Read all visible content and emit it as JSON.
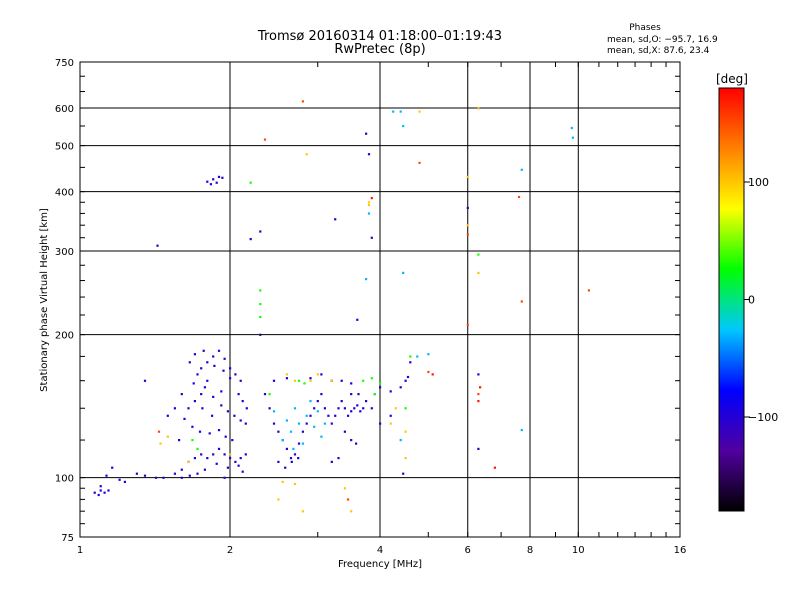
{
  "header": {
    "title_line1": "Tromsø 20160314 01:18:00–01:19:43",
    "title_line2": "RwPretec (8p)"
  },
  "phases": {
    "heading": "Phases",
    "line_o": "mean, sd,O: −95.7, 16.9",
    "line_x": "mean, sd,X:  87.6, 23.4"
  },
  "colorbar": {
    "unit": "[deg]",
    "ticks": [
      {
        "value": 100,
        "label": "100"
      },
      {
        "value": 0,
        "label": "0"
      },
      {
        "value": -100,
        "label": "−100"
      }
    ],
    "range": [
      -180,
      180
    ],
    "stops": [
      "#000000",
      "#5000a0",
      "#0000ff",
      "#00c8ff",
      "#00ff00",
      "#ffff00",
      "#ff8000",
      "#ff0000"
    ]
  },
  "chart_data": {
    "type": "scatter",
    "xlabel": "Frequency [MHz]",
    "ylabel": "Stationary phase Virtual Height [km]",
    "xscale": "log",
    "yscale": "log",
    "xlim": [
      1,
      16
    ],
    "ylim": [
      75,
      750
    ],
    "xticks": [
      {
        "value": 1,
        "label": "1"
      },
      {
        "value": 2,
        "label": "2"
      },
      {
        "value": 4,
        "label": "4"
      },
      {
        "value": 6,
        "label": "6"
      },
      {
        "value": 8,
        "label": "8"
      },
      {
        "value": 10,
        "label": "10"
      },
      {
        "value": 16,
        "label": "16"
      }
    ],
    "xgrid": [
      2,
      4,
      6,
      8,
      10
    ],
    "yticks": [
      {
        "value": 75,
        "label": "75"
      },
      {
        "value": 100,
        "label": "100"
      },
      {
        "value": 200,
        "label": "200"
      },
      {
        "value": 300,
        "label": "300"
      },
      {
        "value": 400,
        "label": "400"
      },
      {
        "value": 500,
        "label": "500"
      },
      {
        "value": 600,
        "label": "600"
      },
      {
        "value": 750,
        "label": "750"
      }
    ],
    "ygrid": [
      100,
      200,
      300,
      400,
      500,
      600
    ],
    "points": [
      [
        1.07,
        93,
        -100
      ],
      [
        1.09,
        92,
        -100
      ],
      [
        1.1,
        94,
        -100
      ],
      [
        1.12,
        93,
        -100
      ],
      [
        1.14,
        94,
        -100
      ],
      [
        1.1,
        96,
        -100
      ],
      [
        1.13,
        101,
        -100
      ],
      [
        1.16,
        105,
        -100
      ],
      [
        1.2,
        99,
        -100
      ],
      [
        1.23,
        98,
        -100
      ],
      [
        1.3,
        102,
        -100
      ],
      [
        1.35,
        101,
        -100
      ],
      [
        1.42,
        100,
        -100
      ],
      [
        1.47,
        100,
        -100
      ],
      [
        1.55,
        102,
        -100
      ],
      [
        1.6,
        104,
        -100
      ],
      [
        1.65,
        108,
        -100
      ],
      [
        1.7,
        110,
        -100
      ],
      [
        1.75,
        112,
        -100
      ],
      [
        1.8,
        110,
        -100
      ],
      [
        1.85,
        112,
        -100
      ],
      [
        1.9,
        115,
        -100
      ],
      [
        1.95,
        112,
        -100
      ],
      [
        2.0,
        110,
        -100
      ],
      [
        2.05,
        108,
        -100
      ],
      [
        2.1,
        110,
        -100
      ],
      [
        2.15,
        112,
        -100
      ],
      [
        1.72,
        102,
        -100
      ],
      [
        1.6,
        100,
        -100
      ],
      [
        1.66,
        101,
        -100
      ],
      [
        1.78,
        104,
        -100
      ],
      [
        1.88,
        107,
        -100
      ],
      [
        1.98,
        105,
        -100
      ],
      [
        2.08,
        106,
        -100
      ],
      [
        2.12,
        103,
        -100
      ],
      [
        1.95,
        100,
        -100
      ],
      [
        1.58,
        120,
        -100
      ],
      [
        1.62,
        133,
        -100
      ],
      [
        1.65,
        140,
        -100
      ],
      [
        1.7,
        145,
        -100
      ],
      [
        1.75,
        150,
        -100
      ],
      [
        1.8,
        160,
        -100
      ],
      [
        1.75,
        170,
        -100
      ],
      [
        1.8,
        175,
        -100
      ],
      [
        1.85,
        180,
        -100
      ],
      [
        1.9,
        185,
        -100
      ],
      [
        1.95,
        178,
        -100
      ],
      [
        2.0,
        170,
        -100
      ],
      [
        2.05,
        165,
        -100
      ],
      [
        2.1,
        160,
        -100
      ],
      [
        1.72,
        165,
        -100
      ],
      [
        1.78,
        155,
        -100
      ],
      [
        1.85,
        148,
        -100
      ],
      [
        1.92,
        142,
        -100
      ],
      [
        1.98,
        138,
        -100
      ],
      [
        2.04,
        135,
        -100
      ],
      [
        2.1,
        132,
        -100
      ],
      [
        2.15,
        130,
        -100
      ],
      [
        1.68,
        128,
        -100
      ],
      [
        1.74,
        125,
        -100
      ],
      [
        1.82,
        124,
        -100
      ],
      [
        1.9,
        126,
        -100
      ],
      [
        1.96,
        122,
        -100
      ],
      [
        2.02,
        120,
        -100
      ],
      [
        1.66,
        175,
        -100
      ],
      [
        1.7,
        182,
        -100
      ],
      [
        1.86,
        172,
        -100
      ],
      [
        1.94,
        168,
        -100
      ],
      [
        2.0,
        162,
        -100
      ],
      [
        1.76,
        140,
        -100
      ],
      [
        1.84,
        135,
        -100
      ],
      [
        1.92,
        152,
        -100
      ],
      [
        2.08,
        150,
        -100
      ],
      [
        2.12,
        145,
        -100
      ],
      [
        2.16,
        140,
        -100
      ],
      [
        1.69,
        158,
        -100
      ],
      [
        1.77,
        185,
        -100
      ],
      [
        1.35,
        160,
        -100
      ],
      [
        1.5,
        135,
        -100
      ],
      [
        1.55,
        140,
        -100
      ],
      [
        1.6,
        150,
        -100
      ],
      [
        1.8,
        420,
        -100
      ],
      [
        1.85,
        425,
        -100
      ],
      [
        1.9,
        430,
        -100
      ],
      [
        1.83,
        415,
        -100
      ],
      [
        1.88,
        418,
        -100
      ],
      [
        1.93,
        428,
        -100
      ],
      [
        1.43,
        308,
        -100
      ],
      [
        2.2,
        318,
        -100
      ],
      [
        2.35,
        150,
        -100
      ],
      [
        2.4,
        140,
        -100
      ],
      [
        2.45,
        130,
        -100
      ],
      [
        2.5,
        125,
        -100
      ],
      [
        2.55,
        120,
        -100
      ],
      [
        2.6,
        115,
        -100
      ],
      [
        2.65,
        110,
        -100
      ],
      [
        2.7,
        112,
        -100
      ],
      [
        2.75,
        118,
        -100
      ],
      [
        2.8,
        125,
        -100
      ],
      [
        2.85,
        130,
        -100
      ],
      [
        2.9,
        135,
        -100
      ],
      [
        2.95,
        140,
        -100
      ],
      [
        3.0,
        145,
        -100
      ],
      [
        3.05,
        150,
        -100
      ],
      [
        3.1,
        140,
        -100
      ],
      [
        3.15,
        135,
        -100
      ],
      [
        3.2,
        130,
        -100
      ],
      [
        3.25,
        135,
        -100
      ],
      [
        3.3,
        140,
        -100
      ],
      [
        3.35,
        145,
        -100
      ],
      [
        3.4,
        140,
        -100
      ],
      [
        3.45,
        135,
        -100
      ],
      [
        3.5,
        138,
        -100
      ],
      [
        3.55,
        140,
        -100
      ],
      [
        3.6,
        142,
        -100
      ],
      [
        3.65,
        138,
        -100
      ],
      [
        3.7,
        140,
        -100
      ],
      [
        2.5,
        108,
        -100
      ],
      [
        2.58,
        105,
        -100
      ],
      [
        2.66,
        108,
        -100
      ],
      [
        2.74,
        110,
        -100
      ],
      [
        2.45,
        160,
        -100
      ],
      [
        2.6,
        162,
        -100
      ],
      [
        2.9,
        162,
        -100
      ],
      [
        3.05,
        165,
        -100
      ],
      [
        3.2,
        160,
        -100
      ],
      [
        3.35,
        160,
        -100
      ],
      [
        3.5,
        158,
        -100
      ],
      [
        3.4,
        125,
        -100
      ],
      [
        3.5,
        120,
        -100
      ],
      [
        3.58,
        118,
        -100
      ],
      [
        3.3,
        110,
        -100
      ],
      [
        3.2,
        108,
        -100
      ],
      [
        3.5,
        150,
        -100
      ],
      [
        3.62,
        150,
        -100
      ],
      [
        3.75,
        145,
        -100
      ],
      [
        3.85,
        140,
        -100
      ],
      [
        3.9,
        150,
        -100
      ],
      [
        4.0,
        155,
        -100
      ],
      [
        4.2,
        152,
        -100
      ],
      [
        4.4,
        155,
        -100
      ],
      [
        4.5,
        160,
        -100
      ],
      [
        4.55,
        163,
        -100
      ],
      [
        4.6,
        175,
        -100
      ],
      [
        4.2,
        135,
        -100
      ],
      [
        4.0,
        130,
        -100
      ],
      [
        3.6,
        215,
        -100
      ],
      [
        3.25,
        350,
        -100
      ],
      [
        2.3,
        330,
        -100
      ],
      [
        3.8,
        480,
        -100
      ],
      [
        3.75,
        530,
        -100
      ],
      [
        3.85,
        320,
        -100
      ],
      [
        6.3,
        600,
        -100
      ],
      [
        6.0,
        370,
        -100
      ],
      [
        6.3,
        165,
        -100
      ],
      [
        4.45,
        102,
        -100
      ],
      [
        6.3,
        115,
        -100
      ],
      [
        2.55,
        120,
        -30
      ],
      [
        2.65,
        125,
        -30
      ],
      [
        2.75,
        130,
        -30
      ],
      [
        2.85,
        135,
        -30
      ],
      [
        2.95,
        128,
        -30
      ],
      [
        3.05,
        122,
        -30
      ],
      [
        2.6,
        132,
        -30
      ],
      [
        2.7,
        140,
        -30
      ],
      [
        2.8,
        118,
        -30
      ],
      [
        3.0,
        138,
        -30
      ],
      [
        2.9,
        145,
        -30
      ],
      [
        3.1,
        130,
        -30
      ],
      [
        2.68,
        115,
        -30
      ],
      [
        2.45,
        138,
        -30
      ],
      [
        4.4,
        590,
        -30
      ],
      [
        4.45,
        550,
        -30
      ],
      [
        4.25,
        590,
        -30
      ],
      [
        3.8,
        360,
        -30
      ],
      [
        4.45,
        270,
        -30
      ],
      [
        3.75,
        262,
        -30
      ],
      [
        9.7,
        545,
        -30
      ],
      [
        9.75,
        520,
        -30
      ],
      [
        7.7,
        445,
        -30
      ],
      [
        7.7,
        126,
        -30
      ],
      [
        4.4,
        120,
        -30
      ],
      [
        4.75,
        180,
        -30
      ],
      [
        5.0,
        182,
        -30
      ],
      [
        2.4,
        150,
        30
      ],
      [
        2.3,
        248,
        30
      ],
      [
        2.3,
        232,
        30
      ],
      [
        2.3,
        218,
        30
      ],
      [
        2.2,
        418,
        30
      ],
      [
        3.7,
        160,
        30
      ],
      [
        3.85,
        162,
        30
      ],
      [
        3.9,
        150,
        30
      ],
      [
        4.0,
        158,
        30
      ],
      [
        2.75,
        160,
        30
      ],
      [
        2.82,
        158,
        30
      ],
      [
        4.5,
        140,
        30
      ],
      [
        4.6,
        180,
        30
      ],
      [
        6.3,
        295,
        30
      ],
      [
        1.68,
        120,
        30
      ],
      [
        1.72,
        115,
        30
      ],
      [
        2.7,
        160,
        100
      ],
      [
        2.9,
        160,
        100
      ],
      [
        3.0,
        165,
        100
      ],
      [
        3.2,
        160,
        100
      ],
      [
        2.85,
        480,
        100
      ],
      [
        2.6,
        165,
        100
      ],
      [
        3.8,
        380,
        100
      ],
      [
        3.8,
        375,
        100
      ],
      [
        4.8,
        590,
        100
      ],
      [
        6.0,
        430,
        100
      ],
      [
        6.0,
        340,
        100
      ],
      [
        6.3,
        270,
        100
      ],
      [
        4.2,
        130,
        100
      ],
      [
        4.5,
        125,
        100
      ],
      [
        4.5,
        110,
        100
      ],
      [
        4.3,
        140,
        100
      ],
      [
        2.5,
        90,
        100
      ],
      [
        2.8,
        85,
        100
      ],
      [
        3.5,
        85,
        100
      ],
      [
        3.4,
        95,
        100
      ],
      [
        1.65,
        108,
        100
      ],
      [
        1.5,
        122,
        100
      ],
      [
        1.45,
        118,
        100
      ],
      [
        2.55,
        98,
        100
      ],
      [
        2.7,
        97,
        100
      ],
      [
        2.0,
        112,
        100
      ],
      [
        6.3,
        600,
        100
      ],
      [
        2.8,
        620,
        150
      ],
      [
        2.35,
        515,
        150
      ],
      [
        4.8,
        460,
        150
      ],
      [
        6.0,
        325,
        150
      ],
      [
        6.0,
        210,
        150
      ],
      [
        7.6,
        390,
        150
      ],
      [
        10.5,
        248,
        150
      ],
      [
        7.7,
        235,
        150
      ],
      [
        3.45,
        90,
        150
      ],
      [
        5.0,
        167,
        150
      ],
      [
        6.3,
        150,
        150
      ],
      [
        1.44,
        125,
        150
      ],
      [
        6.3,
        145,
        170
      ],
      [
        6.8,
        105,
        170
      ],
      [
        6.35,
        155,
        170
      ],
      [
        5.1,
        165,
        170
      ],
      [
        3.85,
        388,
        170
      ],
      [
        2.3,
        200,
        -150
      ]
    ]
  }
}
